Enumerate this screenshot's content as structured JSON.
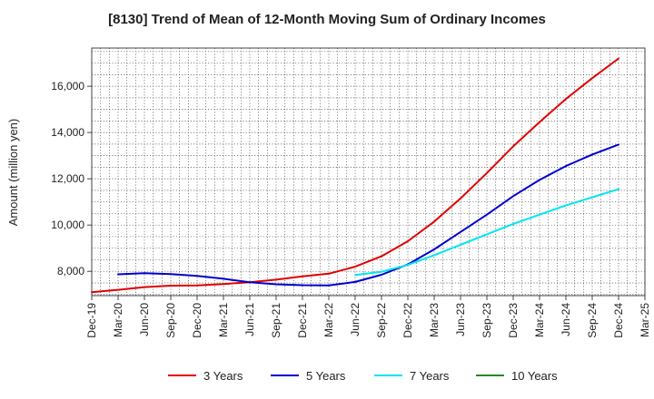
{
  "chart_data": {
    "type": "line",
    "title": "[8130]  Trend of Mean of 12-Month Moving Sum of Ordinary Incomes",
    "xlabel": "",
    "ylabel": "Amount (million yen)",
    "ylim": [
      6950,
      17650
    ],
    "yticks": [
      8000,
      10000,
      12000,
      14000,
      16000
    ],
    "ytick_labels": [
      "8,000",
      "10,000",
      "12,000",
      "14,000",
      "16,000"
    ],
    "categories": [
      "Dec-19",
      "Mar-20",
      "Jun-20",
      "Sep-20",
      "Dec-20",
      "Mar-21",
      "Jun-21",
      "Sep-21",
      "Dec-21",
      "Mar-22",
      "Jun-22",
      "Sep-22",
      "Dec-22",
      "Mar-23",
      "Jun-23",
      "Sep-23",
      "Dec-23",
      "Mar-24",
      "Jun-24",
      "Sep-24",
      "Dec-24",
      "Mar-25"
    ],
    "grid": true,
    "legend_position": "bottom",
    "series": [
      {
        "name": "3 Years",
        "color": "#e00000",
        "values": [
          7100,
          7200,
          7320,
          7380,
          7390,
          7450,
          7530,
          7640,
          7780,
          7900,
          8200,
          8650,
          9300,
          10150,
          11150,
          12250,
          13400,
          14450,
          15450,
          16350,
          17200,
          null
        ]
      },
      {
        "name": "5 Years",
        "color": "#0000cc",
        "values": [
          null,
          7870,
          7920,
          7880,
          7800,
          7680,
          7530,
          7440,
          7400,
          7390,
          7540,
          7850,
          8300,
          8950,
          9700,
          10450,
          11250,
          11950,
          12550,
          13050,
          13480,
          null
        ]
      },
      {
        "name": "7 Years",
        "color": "#00e5ee",
        "values": [
          null,
          null,
          null,
          null,
          null,
          null,
          null,
          null,
          null,
          null,
          7840,
          7980,
          8280,
          8700,
          9150,
          9600,
          10050,
          10450,
          10850,
          11200,
          11550,
          null
        ]
      },
      {
        "name": "10 Years",
        "color": "#228b22",
        "values": [
          null,
          null,
          null,
          null,
          null,
          null,
          null,
          null,
          null,
          null,
          null,
          null,
          null,
          null,
          null,
          null,
          null,
          null,
          null,
          null,
          null,
          null
        ]
      }
    ]
  }
}
